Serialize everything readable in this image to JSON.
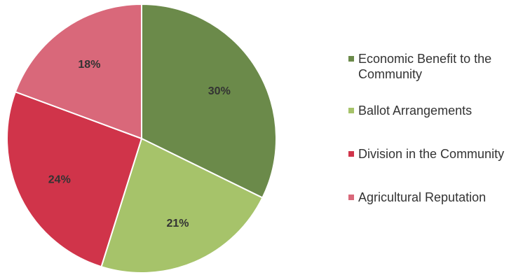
{
  "chart_data": {
    "type": "pie",
    "title": "",
    "categories": [
      "Economic Benefit to the Community",
      "Ballot Arrangements",
      "Division in the Community",
      "Agricultural Reputation"
    ],
    "values": [
      30,
      21,
      24,
      18
    ],
    "value_labels": [
      "30%",
      "21%",
      "24%",
      "18%"
    ],
    "colors": [
      "#6b8a4a",
      "#a6c36a",
      "#d0344a",
      "#d9687a"
    ],
    "start_angle_deg": 0,
    "direction": "clockwise",
    "legend_position": "right"
  }
}
